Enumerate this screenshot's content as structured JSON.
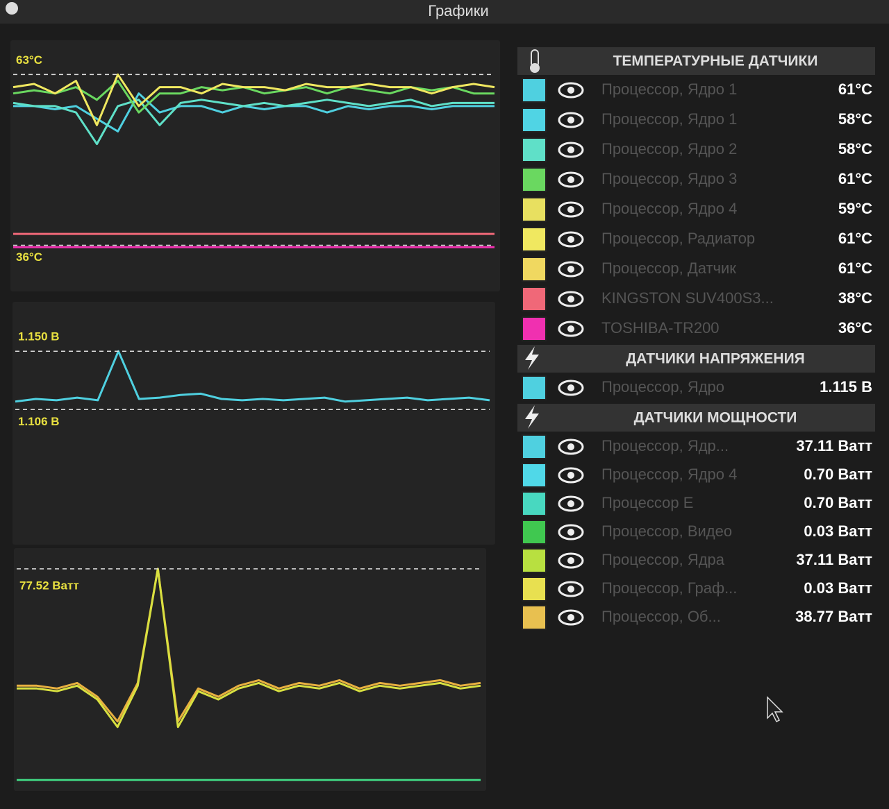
{
  "window": {
    "title": "Графики"
  },
  "graphs": [
    {
      "ylim": [
        32,
        66
      ],
      "yticks": [
        {
          "value": 63,
          "label": "63°C"
        },
        {
          "value": 36,
          "label": "36°C"
        }
      ],
      "series": [
        {
          "color": "#4fd0e0",
          "values": [
            58,
            58,
            57.5,
            58,
            56,
            54,
            60,
            57,
            58,
            58,
            57,
            58,
            57.5,
            58,
            58,
            57,
            58,
            57.5,
            58,
            58,
            57.5,
            58,
            58,
            58
          ]
        },
        {
          "color": "#5fe0c8",
          "values": [
            58.5,
            58,
            58,
            57,
            52,
            58,
            59,
            55,
            58.5,
            59,
            58.5,
            58,
            58.5,
            58,
            58.5,
            59,
            58.5,
            58,
            58.5,
            59,
            58,
            58.5,
            58.5,
            58.5
          ]
        },
        {
          "color": "#6ad860",
          "values": [
            60,
            60.5,
            60,
            61,
            59,
            62,
            57,
            60,
            60,
            61,
            60.5,
            61,
            60,
            60.5,
            61,
            60,
            61,
            60.5,
            60,
            61,
            60.5,
            61,
            60,
            60
          ]
        },
        {
          "color": "#f0e860",
          "values": [
            61,
            61.5,
            60,
            62,
            55,
            63,
            58,
            61,
            61,
            60,
            61.5,
            61,
            61,
            60.5,
            61.5,
            61,
            61,
            61.5,
            61,
            61,
            60,
            61,
            61.5,
            61
          ]
        },
        {
          "color": "#f06878",
          "values": [
            37.8,
            37.8
          ]
        },
        {
          "color": "#f030b0",
          "values": [
            35.7,
            35.7
          ]
        }
      ]
    },
    {
      "ylim": [
        1.08,
        1.17
      ],
      "yticks": [
        {
          "value": 1.15,
          "label": "1.150 В"
        },
        {
          "value": 1.106,
          "label": "1.106 В"
        }
      ],
      "series": [
        {
          "color": "#4fd0e0",
          "values": [
            1.112,
            1.114,
            1.113,
            1.115,
            1.113,
            1.15,
            1.114,
            1.115,
            1.117,
            1.118,
            1.114,
            1.113,
            1.114,
            1.113,
            1.114,
            1.115,
            1.112,
            1.113,
            1.114,
            1.115,
            1.113,
            1.114,
            1.115,
            1.113
          ]
        }
      ]
    },
    {
      "ylim": [
        0,
        80
      ],
      "yticks": [
        {
          "value": 77.52,
          "label": "77.52 Ватт"
        }
      ],
      "series": [
        {
          "color": "#e8b040",
          "values": [
            35,
            35,
            34,
            36,
            31,
            22,
            36,
            77.52,
            22,
            34,
            31,
            35,
            37,
            34,
            36,
            35,
            37,
            34,
            36,
            35,
            36,
            37,
            35,
            36
          ]
        },
        {
          "color": "#d8e040",
          "values": [
            34,
            34,
            33,
            35,
            30,
            20,
            35,
            77.52,
            20,
            33,
            30,
            34,
            36,
            33,
            35,
            34,
            36,
            33,
            35,
            34,
            35,
            36,
            34,
            35
          ]
        },
        {
          "color": "#40d080",
          "values": [
            0.7,
            0.7
          ]
        }
      ]
    }
  ],
  "groups": [
    {
      "title": "ТЕМПЕРАТУРНЫЕ ДАТЧИКИ",
      "items": [
        {
          "name": "Процессор, Ядро 1",
          "value": "61°C",
          "color": "#4fd0e0"
        },
        {
          "name": "Процессор, Ядро 1",
          "value": "58°C",
          "color": "#50d4e4"
        },
        {
          "name": "Процессор, Ядро 2",
          "value": "58°C",
          "color": "#5fe0c8"
        },
        {
          "name": "Процессор, Ядро 3",
          "value": "61°C",
          "color": "#6ad860"
        },
        {
          "name": "Процессор, Ядро 4",
          "value": "59°C",
          "color": "#e8e060"
        },
        {
          "name": "Процессор, Радиатор",
          "value": "61°C",
          "color": "#f0e860"
        },
        {
          "name": "Процессор, Датчик",
          "value": "61°C",
          "color": "#f0d860"
        },
        {
          "name": "KINGSTON SUV400S3...",
          "value": "38°C",
          "color": "#f06878"
        },
        {
          "name": "TOSHIBA-TR200",
          "value": "36°C",
          "color": "#f030b0"
        }
      ]
    },
    {
      "title": "ДАТЧИКИ НАПРЯЖЕНИЯ",
      "items": [
        {
          "name": "Процессор, Ядро",
          "value": "1.115 В",
          "color": "#4fd0e0"
        }
      ]
    },
    {
      "title": "ДАТЧИКИ МОЩНОСТИ",
      "items": [
        {
          "name": "Процессор, Ядр...",
          "value": "37.11 Ватт",
          "color": "#4fd0e0"
        },
        {
          "name": "Процессор, Ядро 4",
          "value": "0.70 Ватт",
          "color": "#50d8e8"
        },
        {
          "name": "Процессор Е",
          "value": "0.70 Ватт",
          "color": "#48d8c0"
        },
        {
          "name": "Процессор, Видео",
          "value": "0.03 Ватт",
          "color": "#40c850"
        },
        {
          "name": "Процессор, Ядра",
          "value": "37.11 Ватт",
          "color": "#b8e040"
        },
        {
          "name": "Процессор, Граф...",
          "value": "0.03 Ватт",
          "color": "#e8e050"
        },
        {
          "name": "Процессор, Об...",
          "value": "38.77 Ватт",
          "color": "#e8c050"
        }
      ]
    }
  ]
}
